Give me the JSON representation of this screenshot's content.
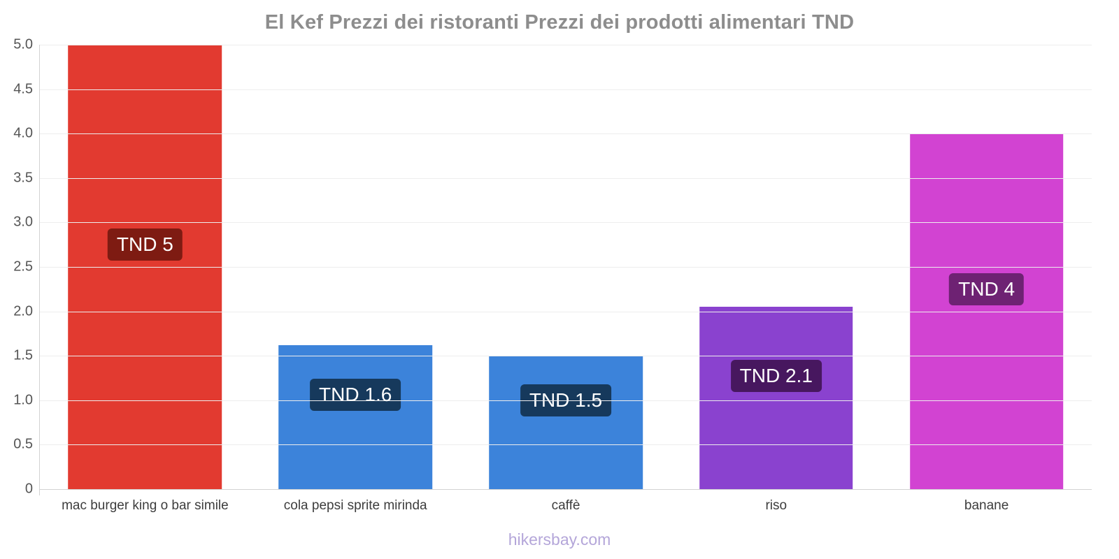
{
  "header": {
    "title": "El Kef Prezzi dei ristoranti Prezzi dei prodotti alimentari TND"
  },
  "footer": {
    "text": "hikersbay.com"
  },
  "chart_data": {
    "type": "bar",
    "title": "El Kef Prezzi dei ristoranti Prezzi dei prodotti alimentari TND",
    "currency": "TND",
    "categories": [
      "mac burger king o bar simile",
      "cola pepsi sprite mirinda",
      "caffè",
      "riso",
      "banane"
    ],
    "values": [
      5,
      1.62,
      1.5,
      2.05,
      4
    ],
    "bar_labels": [
      "TND 5",
      "TND 1.6",
      "TND 1.5",
      "TND 2.1",
      "TND 4"
    ],
    "bar_colors": [
      "#e23a30",
      "#3c83da",
      "#3c83da",
      "#8a42cf",
      "#d243d2"
    ],
    "label_bg_colors": [
      "#7e1b12",
      "#16395c",
      "#16395c",
      "#47175f",
      "#6e2273"
    ],
    "ylim": [
      0,
      5
    ],
    "yticks": [
      {
        "value": 5,
        "label": "5.0"
      },
      {
        "value": 4.5,
        "label": "4.5"
      },
      {
        "value": 4,
        "label": "4.0"
      },
      {
        "value": 3.5,
        "label": "3.5"
      },
      {
        "value": 3,
        "label": "3.0"
      },
      {
        "value": 2.5,
        "label": "2.5"
      },
      {
        "value": 2,
        "label": "2.0"
      },
      {
        "value": 1.5,
        "label": "1.5"
      },
      {
        "value": 1,
        "label": "1.0"
      },
      {
        "value": 0.5,
        "label": "0.5"
      },
      {
        "value": 0,
        "label": "0"
      }
    ],
    "grid": true,
    "legend": false,
    "xlabel": "",
    "ylabel": ""
  }
}
